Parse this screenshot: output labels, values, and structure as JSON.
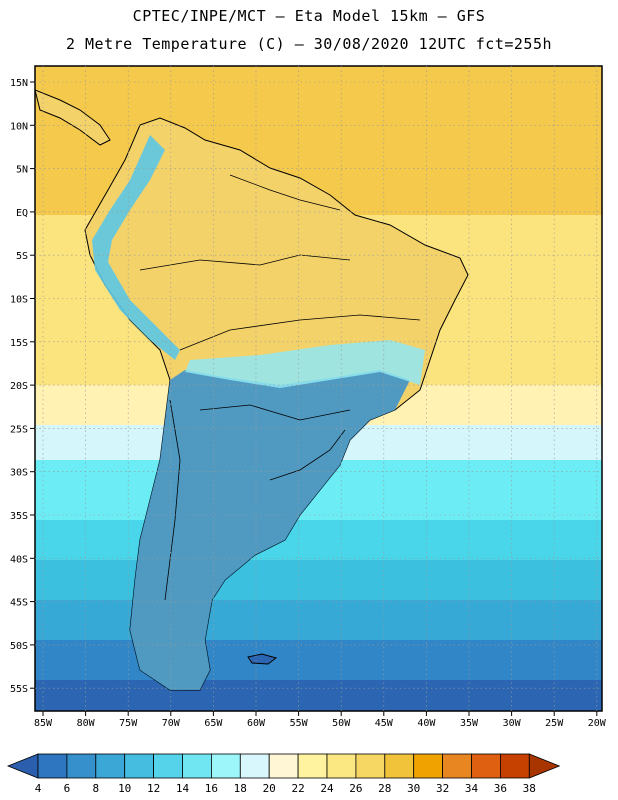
{
  "header": {
    "line1": "CPTEC/INPE/MCT –  Eta Model 15km – GFS",
    "line2": "2 Metre Temperature (C) – 30/08/2020 12UTC fct=255h"
  },
  "map": {
    "lat_labels": [
      "15N",
      "10N",
      "5N",
      "EQ",
      "5S",
      "10S",
      "15S",
      "20S",
      "25S",
      "30S",
      "35S",
      "40S",
      "45S",
      "50S",
      "55S"
    ],
    "lon_labels": [
      "85W",
      "80W",
      "75W",
      "70W",
      "65W",
      "60W",
      "55W",
      "50W",
      "45W",
      "40W",
      "35W",
      "30W",
      "25W",
      "20W"
    ],
    "ocean_bands": [
      {
        "color": "#f5c94c"
      },
      {
        "color": "#fbe37d"
      },
      {
        "color": "#fff2b3"
      },
      {
        "color": "#d5f6fb"
      },
      {
        "color": "#6cecf5"
      },
      {
        "color": "#49d6ea"
      },
      {
        "color": "#3cc0e0"
      },
      {
        "color": "#36a9d6"
      },
      {
        "color": "#3186c7"
      },
      {
        "color": "#2c66b2"
      }
    ]
  },
  "colorbar": {
    "labels": [
      "4",
      "6",
      "8",
      "10",
      "12",
      "14",
      "16",
      "18",
      "20",
      "22",
      "24",
      "26",
      "28",
      "30",
      "32",
      "34",
      "36",
      "38"
    ],
    "colors": [
      "#2b5fae",
      "#2e76bf",
      "#3590cc",
      "#3aa7d7",
      "#44bde1",
      "#55d3ea",
      "#70e6f2",
      "#9df6fa",
      "#d7f7fc",
      "#fff6d6",
      "#fff3a0",
      "#fce883",
      "#f6d764",
      "#f0c33a",
      "#f0a300",
      "#e88622",
      "#df6010",
      "#c64000",
      "#a83500"
    ]
  }
}
